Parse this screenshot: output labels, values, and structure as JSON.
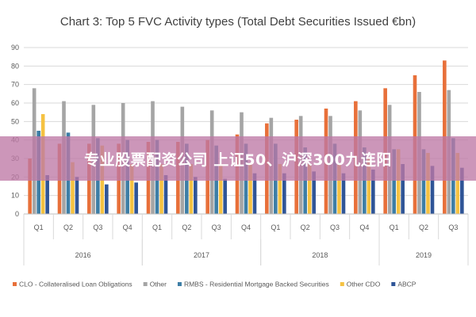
{
  "chart_data": {
    "type": "bar",
    "title": "Chart 3: Top 5 FVC Activity types (Total Debt Securities Issued €bn)",
    "ylim": [
      0,
      90
    ],
    "yticks": [
      0,
      10,
      20,
      30,
      40,
      50,
      60,
      70,
      80,
      90
    ],
    "grid": true,
    "legend_position": "bottom",
    "categories": [
      "Q1",
      "Q2",
      "Q3",
      "Q4",
      "Q1",
      "Q2",
      "Q3",
      "Q4",
      "Q1",
      "Q2",
      "Q3",
      "Q4",
      "Q1",
      "Q2",
      "Q3"
    ],
    "groups": [
      {
        "label": "2016",
        "start": 0,
        "count": 4
      },
      {
        "label": "2017",
        "start": 4,
        "count": 4
      },
      {
        "label": "2018",
        "start": 8,
        "count": 4
      },
      {
        "label": "2019",
        "start": 12,
        "count": 3
      }
    ],
    "series": [
      {
        "name": "CLO - Collateralised Loan Obligations",
        "color": "#e8703a",
        "values": [
          30,
          38,
          38,
          38,
          39,
          39,
          40,
          43,
          49,
          51,
          57,
          61,
          68,
          75,
          83
        ]
      },
      {
        "name": "Other",
        "color": "#a5a5a5",
        "values": [
          68,
          61,
          59,
          60,
          61,
          58,
          56,
          55,
          52,
          53,
          53,
          56,
          59,
          66,
          67
        ]
      },
      {
        "name": "RMBS - Residential Mortgage Backed Securities",
        "color": "#3d7ea6",
        "values": [
          45,
          44,
          41,
          40,
          40,
          38,
          37,
          38,
          38,
          36,
          38,
          36,
          35,
          35,
          41
        ]
      },
      {
        "name": "Other CDO",
        "color": "#f5c242",
        "values": [
          54,
          28,
          37,
          27,
          27,
          27,
          27,
          27,
          27,
          27,
          27,
          30,
          35,
          33,
          33
        ]
      },
      {
        "name": "ABCP",
        "color": "#2f5597",
        "values": [
          21,
          20,
          16,
          17,
          21,
          20,
          19,
          22,
          22,
          23,
          22,
          24,
          27,
          26,
          25
        ]
      }
    ]
  },
  "banner": {
    "text": "专业股票配资公司 上证50、沪深300九连阳"
  }
}
